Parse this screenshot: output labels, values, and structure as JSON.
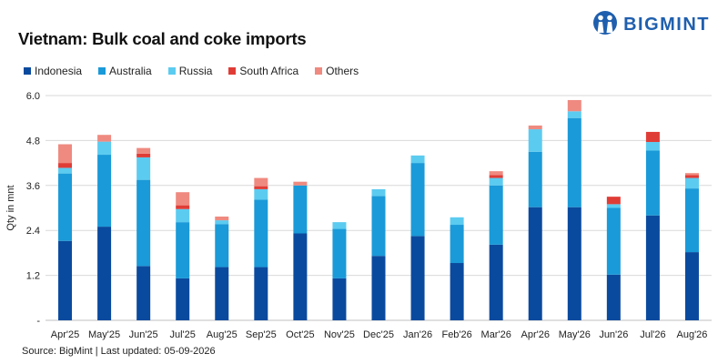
{
  "header": {
    "title": "Vietnam: Bulk coal and coke imports",
    "logo_text": "BIGMINT",
    "logo_icon": "bigmint-people-icon"
  },
  "footer": {
    "source": "Source: BigMint | Last updated: 05-09-2026"
  },
  "colors": {
    "Indonesia": "#0a4a9e",
    "Australia": "#1a9ad8",
    "Russia": "#5ccbf0",
    "South Africa": "#e03c36",
    "Others": "#ef8a80",
    "grid": "#d9d9d9",
    "axis": "#bfbfbf"
  },
  "chart_data": {
    "type": "bar",
    "stacked": true,
    "title": "Vietnam: Bulk coal and coke imports",
    "xlabel": "",
    "ylabel": "Qty in mnt",
    "ylim": [
      0,
      6.0
    ],
    "yticks": [
      "-",
      "1.2",
      "2.4",
      "3.6",
      "4.8",
      "6.0"
    ],
    "ytick_values": [
      0,
      1.2,
      2.4,
      3.6,
      4.8,
      6.0
    ],
    "grid": true,
    "legend_position": "top-left",
    "categories": [
      "Apr'25",
      "May'25",
      "Jun'25",
      "Jul'25",
      "Aug'25",
      "Sep'25",
      "Oct'25",
      "Nov'25",
      "Dec'25",
      "Jan'26",
      "Feb'26",
      "Mar'26",
      "Apr'26",
      "May'26",
      "Jun'26",
      "Jul'26",
      "Aug'26"
    ],
    "series": [
      {
        "name": "Indonesia",
        "values": [
          2.12,
          2.5,
          1.45,
          1.12,
          1.42,
          1.42,
          2.32,
          1.12,
          1.72,
          2.25,
          1.53,
          2.02,
          3.02,
          3.02,
          1.22,
          2.8,
          1.82
        ]
      },
      {
        "name": "Australia",
        "values": [
          1.8,
          1.92,
          2.3,
          1.5,
          1.15,
          1.8,
          1.28,
          1.32,
          1.6,
          1.95,
          1.02,
          1.58,
          1.48,
          2.38,
          1.78,
          1.73,
          1.7
        ]
      },
      {
        "name": "Russia",
        "values": [
          0.15,
          0.35,
          0.6,
          0.35,
          0.1,
          0.28,
          0.0,
          0.18,
          0.18,
          0.2,
          0.2,
          0.2,
          0.6,
          0.18,
          0.1,
          0.23,
          0.28
        ]
      },
      {
        "name": "South Africa",
        "values": [
          0.13,
          0.0,
          0.1,
          0.1,
          0.0,
          0.08,
          0.0,
          0.0,
          0.0,
          0.0,
          0.0,
          0.08,
          0.0,
          0.0,
          0.2,
          0.27,
          0.08
        ]
      },
      {
        "name": "Others",
        "values": [
          0.5,
          0.18,
          0.15,
          0.35,
          0.1,
          0.22,
          0.1,
          0.0,
          0.0,
          0.0,
          0.0,
          0.1,
          0.1,
          0.3,
          0.0,
          0.0,
          0.05
        ]
      }
    ]
  }
}
